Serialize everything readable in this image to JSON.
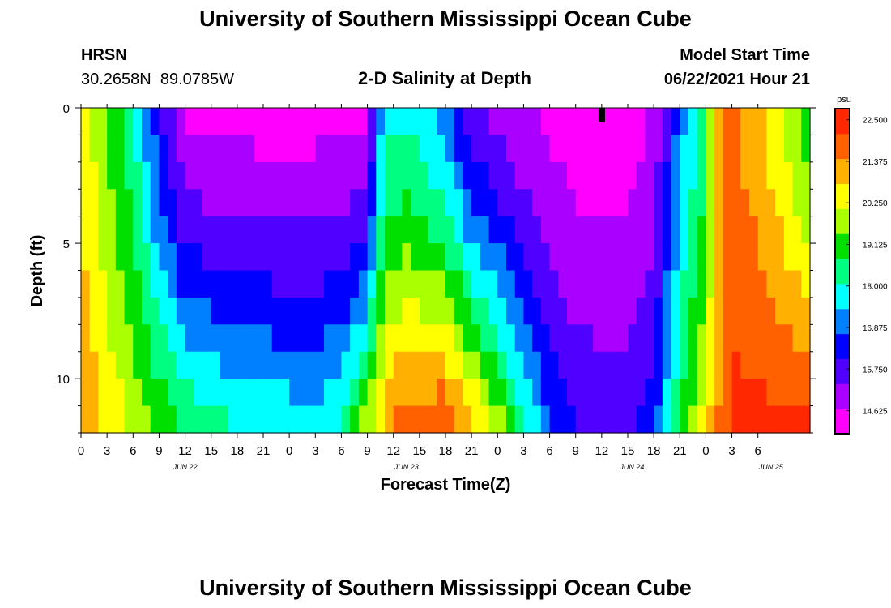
{
  "page": {
    "title_top": "University of Southern Mississippi Ocean Cube",
    "title_bottom": "University of Southern Mississippi Ocean Cube",
    "station_name": "HRSN",
    "station_coords": "30.2658N  89.0785W",
    "plot_title": "2-D Salinity at Depth",
    "model_start_label": "Model Start Time",
    "model_start_value": "06/22/2021 Hour 21"
  },
  "colors": {
    "scale": [
      "#ff00ff",
      "#aa00ff",
      "#5000ff",
      "#0000ff",
      "#0080ff",
      "#00ffff",
      "#00ff80",
      "#00e000",
      "#aaff00",
      "#ffff00",
      "#ffb000",
      "#ff6000",
      "#ff2800"
    ],
    "marker": "#000000"
  },
  "chart_data": {
    "type": "heatmap",
    "title": "2-D Salinity at Depth",
    "xlabel": "Forecast Time(Z)",
    "ylabel": "Depth (ft)",
    "x_hours_from_start": [
      0,
      84
    ],
    "x_tick_labels": [
      "0",
      "3",
      "6",
      "9",
      "12",
      "15",
      "18",
      "21",
      "0",
      "3",
      "6",
      "9",
      "12",
      "15",
      "18",
      "21",
      "0",
      "3",
      "6",
      "9",
      "12",
      "15",
      "18",
      "21",
      "0",
      "3",
      "6"
    ],
    "date_labels": [
      {
        "label": "JUN 22",
        "hour": 12
      },
      {
        "label": "JUN 23",
        "hour": 37.5
      },
      {
        "label": "JUN 24",
        "hour": 63.5
      },
      {
        "label": "JUN 25",
        "hour": 79.5
      }
    ],
    "y_range": [
      0,
      12
    ],
    "y_tick_labels": [
      "0",
      "5",
      "10"
    ],
    "colorbar": {
      "unit": "psu",
      "range": [
        14.0,
        22.8
      ],
      "tick_labels": [
        "22.500",
        "21.375",
        "20.250",
        "19.125",
        "18.000",
        "16.875",
        "15.750",
        "14.625"
      ]
    },
    "marker_hour": 60,
    "depth_levels_ft": [
      0,
      1,
      2,
      3,
      4,
      5,
      6,
      7,
      8,
      9,
      10,
      11,
      12
    ],
    "surface_salinity_anchors": [
      [
        0,
        20.6
      ],
      [
        6,
        18.2
      ],
      [
        9,
        16.2
      ],
      [
        12,
        14.6
      ],
      [
        21,
        14.4
      ],
      [
        33,
        14.5
      ],
      [
        34,
        16.6
      ],
      [
        35,
        17.8
      ],
      [
        38,
        18.0
      ],
      [
        42,
        17.0
      ],
      [
        45,
        15.6
      ],
      [
        49,
        15.0
      ],
      [
        57,
        14.3
      ],
      [
        63,
        14.3
      ],
      [
        66,
        14.8
      ],
      [
        69,
        17.0
      ],
      [
        72,
        18.6
      ],
      [
        74,
        21.8
      ],
      [
        78,
        21.0
      ],
      [
        81,
        20.0
      ],
      [
        84,
        19.0
      ]
    ],
    "bottom_salinity_anchors": [
      [
        0,
        21.4
      ],
      [
        6,
        20.0
      ],
      [
        12,
        18.8
      ],
      [
        18,
        18.2
      ],
      [
        27,
        17.8
      ],
      [
        30,
        18.2
      ],
      [
        33,
        20.0
      ],
      [
        36,
        21.9
      ],
      [
        42,
        22.3
      ],
      [
        48,
        20.0
      ],
      [
        51,
        18.3
      ],
      [
        54,
        16.8
      ],
      [
        57,
        16.0
      ],
      [
        63,
        15.8
      ],
      [
        66,
        16.6
      ],
      [
        69,
        18.8
      ],
      [
        72,
        20.6
      ],
      [
        75,
        22.4
      ],
      [
        84,
        22.4
      ]
    ]
  }
}
